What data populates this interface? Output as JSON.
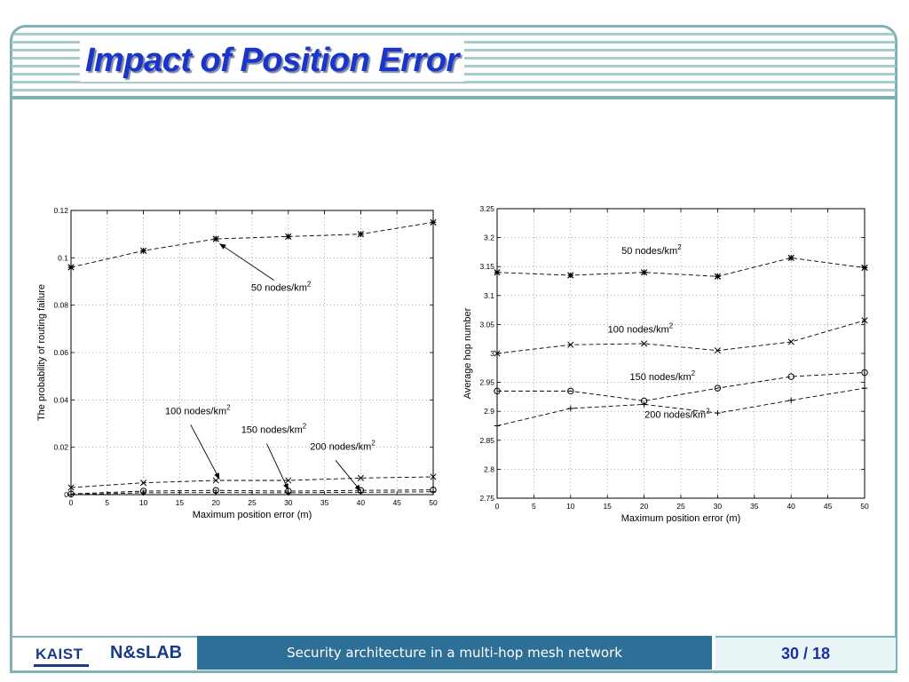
{
  "slide": {
    "title": "Impact of Position Error"
  },
  "footer": {
    "logo_left": "KAIST",
    "logo_right": "N&sLAB",
    "center_text": "Security architecture in a multi-hop mesh network",
    "page": "30 / 18"
  },
  "colors": {
    "frame": "#7fb2b6",
    "title": "#1a35c8",
    "footer_band": "#2d6f96"
  },
  "chart_data": [
    {
      "type": "line",
      "xlabel": "Maximum position error (m)",
      "ylabel": "The probability of routing failure",
      "x": [
        0,
        10,
        20,
        30,
        40,
        50
      ],
      "xticks": [
        0,
        5,
        10,
        15,
        20,
        25,
        30,
        35,
        40,
        45,
        50
      ],
      "xticklabels": [
        "0",
        "5",
        "10",
        "15",
        "20",
        "25",
        "30",
        "35",
        "40",
        "45",
        "50"
      ],
      "yticks": [
        0,
        0.02,
        0.04,
        0.06,
        0.08,
        0.1,
        0.12
      ],
      "yticklabels": [
        "0",
        "0.02",
        "0.04",
        "0.06",
        "0.08",
        "0.1",
        "0.12"
      ],
      "xlim": [
        0,
        50
      ],
      "ylim": [
        0,
        0.12
      ],
      "grid": true,
      "series": [
        {
          "name": "50 nodes/km",
          "marker": "star",
          "values": [
            0.096,
            0.103,
            0.108,
            0.109,
            0.11,
            0.115
          ]
        },
        {
          "name": "100 nodes/km",
          "marker": "x",
          "values": [
            0.003,
            0.005,
            0.006,
            0.006,
            0.007,
            0.0075
          ]
        },
        {
          "name": "150 nodes/km",
          "marker": "circle",
          "values": [
            0.0003,
            0.0015,
            0.0018,
            0.0015,
            0.0018,
            0.002
          ]
        },
        {
          "name": "200 nodes/km",
          "marker": "plus",
          "values": [
            0.0,
            0.0008,
            0.0009,
            0.0008,
            0.001,
            0.0012
          ]
        }
      ],
      "annotations": [
        {
          "text": "50 nodes/km",
          "sup": "2",
          "x": 29,
          "y": 0.086,
          "arrow_to": [
            20.5,
            0.106
          ]
        },
        {
          "text": "100 nodes/km",
          "sup": "2",
          "x": 17.5,
          "y": 0.034,
          "arrow_to": [
            20.5,
            0.0065
          ]
        },
        {
          "text": "150 nodes/km",
          "sup": "2",
          "x": 28,
          "y": 0.026,
          "arrow_to": [
            30,
            0.002
          ]
        },
        {
          "text": "200 nodes/km",
          "sup": "2",
          "x": 37.5,
          "y": 0.019,
          "arrow_to": [
            40,
            0.0015
          ]
        }
      ]
    },
    {
      "type": "line",
      "xlabel": "Maximum position error (m)",
      "ylabel": "Average hop number",
      "x": [
        0,
        10,
        20,
        30,
        40,
        50
      ],
      "xticks": [
        0,
        5,
        10,
        15,
        20,
        25,
        30,
        35,
        40,
        45,
        50
      ],
      "xticklabels": [
        "0",
        "5",
        "10",
        "15",
        "20",
        "25",
        "30",
        "35",
        "40",
        "45",
        "50"
      ],
      "yticks": [
        2.75,
        2.8,
        2.85,
        2.9,
        2.95,
        3,
        3.05,
        3.1,
        3.15,
        3.2,
        3.25
      ],
      "yticklabels": [
        "2.75",
        "2.8",
        "2.85",
        "2.9",
        "2.95",
        "3",
        "3.05",
        "3.1",
        "3.15",
        "3.2",
        "3.25"
      ],
      "xlim": [
        0,
        50
      ],
      "ylim": [
        2.75,
        3.25
      ],
      "grid": true,
      "series": [
        {
          "name": "50 nodes/km",
          "marker": "star",
          "values": [
            3.14,
            3.135,
            3.14,
            3.133,
            3.165,
            3.148
          ]
        },
        {
          "name": "100 nodes/km",
          "marker": "x",
          "values": [
            3.0,
            3.015,
            3.017,
            3.005,
            3.02,
            3.057
          ]
        },
        {
          "name": "150 nodes/km",
          "marker": "circle",
          "values": [
            2.935,
            2.935,
            2.918,
            2.94,
            2.96,
            2.967
          ]
        },
        {
          "name": "200 nodes/km",
          "marker": "plus",
          "values": [
            2.875,
            2.905,
            2.912,
            2.897,
            2.919,
            2.94
          ]
        }
      ],
      "annotations": [
        {
          "text": "50 nodes/km",
          "sup": "2",
          "x": 21,
          "y": 3.172
        },
        {
          "text": "100 nodes/km",
          "sup": "2",
          "x": 19.5,
          "y": 3.036
        },
        {
          "text": "150 nodes/km",
          "sup": "2",
          "x": 22.5,
          "y": 2.954
        },
        {
          "text": "200 nodes/km",
          "sup": "2",
          "x": 24.5,
          "y": 2.889
        }
      ]
    }
  ]
}
